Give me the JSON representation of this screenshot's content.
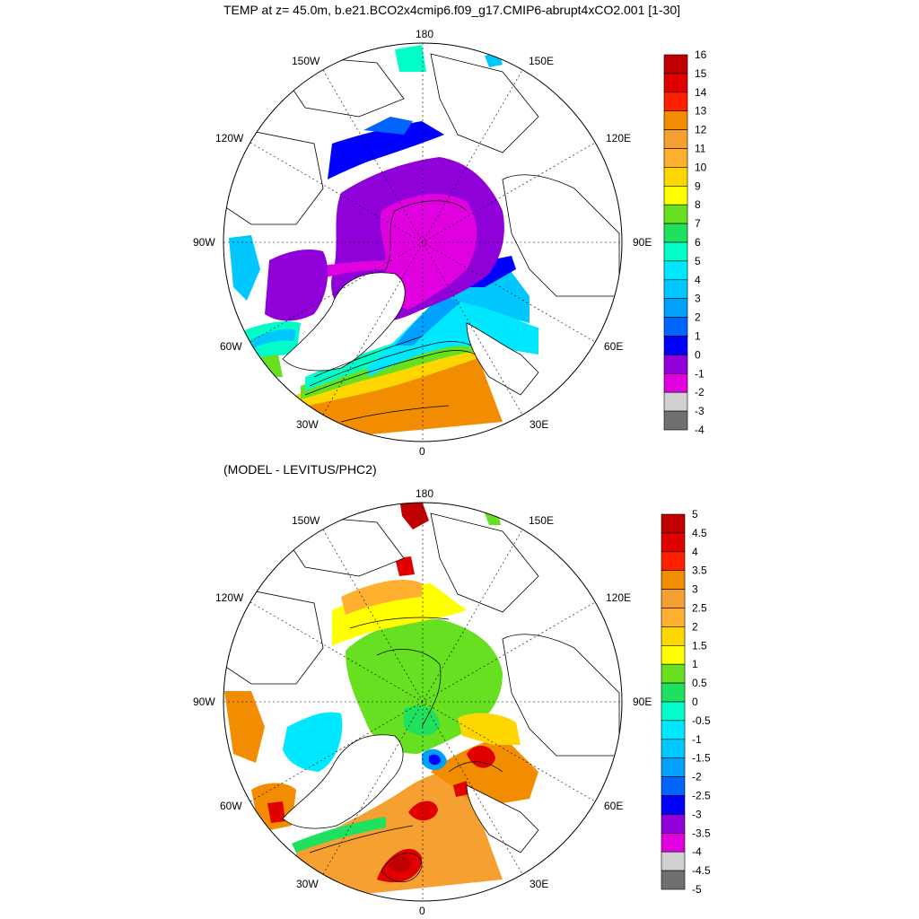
{
  "title": "TEMP at z=  45.0m, b.e21.BCO2x4cmip6.f09_g17.CMIP6-abrupt4xCO2.001 [1-30]",
  "subtitle": "(MODEL - LEVITUS/PHC2)",
  "lon_labels": {
    "north": "180",
    "south": "0",
    "west": "90W",
    "east": "90E",
    "nw1": "150W",
    "nw2": "120W",
    "sw1": "60W",
    "sw2": "30W",
    "ne1": "150E",
    "ne2": "120E",
    "se1": "60E",
    "se2": "30E"
  },
  "colorbar_top": {
    "labels": [
      "16",
      "15",
      "14",
      "13",
      "12",
      "11",
      "10",
      "9",
      "8",
      "7",
      "6",
      "5",
      "4",
      "3",
      "2",
      "1",
      "0",
      "-1",
      "-2",
      "-3",
      "-4"
    ],
    "colors": [
      "#c00000",
      "#e00000",
      "#ff2000",
      "#f28c00",
      "#f5a030",
      "#ffb030",
      "#ffd700",
      "#ffff00",
      "#66e020",
      "#20e060",
      "#00ffc8",
      "#00e8ff",
      "#00c8ff",
      "#00a0ff",
      "#0064ff",
      "#0000ff",
      "#9000d8",
      "#e000e0",
      "#d0d0d0",
      "#707070"
    ]
  },
  "colorbar_bottom": {
    "labels": [
      "5",
      "4.5",
      "4",
      "3.5",
      "3",
      "2.5",
      "2",
      "1.5",
      "1",
      "0.5",
      "0",
      "-0.5",
      "-1",
      "-1.5",
      "-2",
      "-2.5",
      "-3",
      "-3.5",
      "-4",
      "-4.5",
      "-5"
    ],
    "colors": [
      "#c00000",
      "#e00000",
      "#ff2000",
      "#f28c00",
      "#f5a030",
      "#ffb030",
      "#ffd700",
      "#ffff00",
      "#66e020",
      "#20e060",
      "#00ffc8",
      "#00e8ff",
      "#00c8ff",
      "#00a0ff",
      "#0064ff",
      "#0000ff",
      "#9000d8",
      "#e000e0",
      "#d0d0d0",
      "#707070"
    ]
  }
}
